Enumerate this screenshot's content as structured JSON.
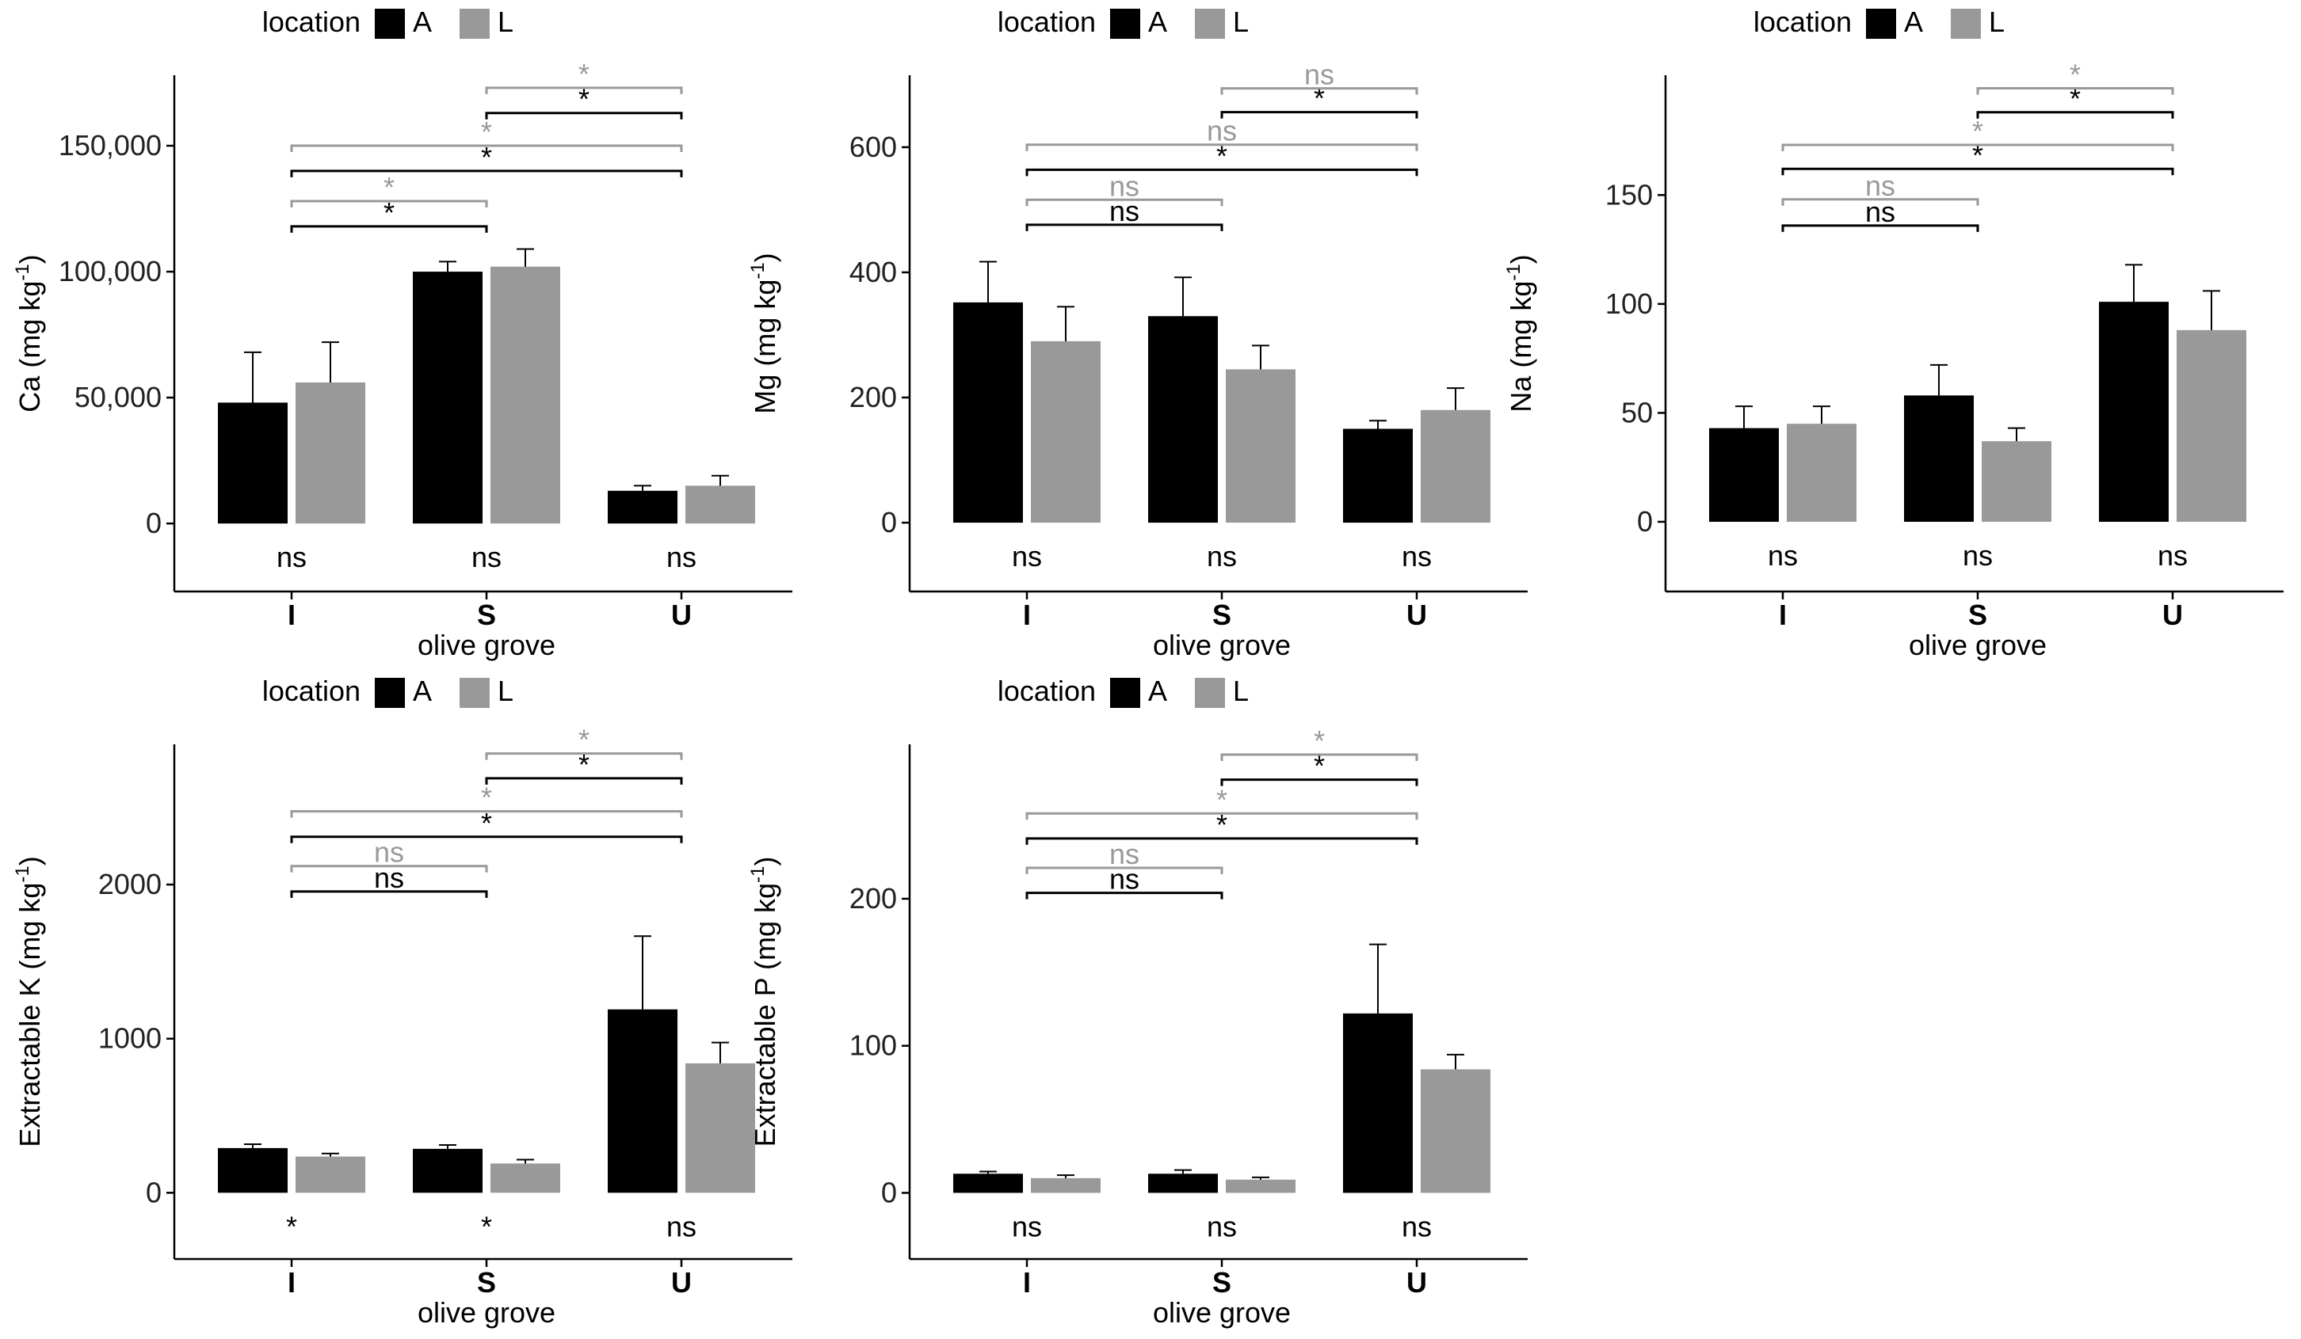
{
  "figure": {
    "colors": {
      "A": "#000000",
      "L": "#999999",
      "axis": "#000000"
    }
  },
  "chart_data": [
    {
      "type": "bar",
      "legend_title": "location",
      "legend_entries": [
        "A",
        "L"
      ],
      "ylabel_main": "Ca (mg kg",
      "ylabel_sup": "-1",
      "ylabel_close": ")",
      "xlabel": "olive grove",
      "categories": [
        "I",
        "S",
        "U"
      ],
      "ylim": [
        -27000,
        178000
      ],
      "yticks": [
        0,
        50000,
        100000,
        150000
      ],
      "ytick_labels": [
        "0",
        "50,000",
        "100,000",
        "150,000"
      ],
      "series": [
        {
          "name": "A",
          "values": [
            48000,
            100000,
            13000
          ],
          "errors": [
            20000,
            4000,
            2000
          ]
        },
        {
          "name": "L",
          "values": [
            56000,
            102000,
            15000
          ],
          "errors": [
            16000,
            7000,
            4000
          ]
        }
      ],
      "within_group_labels": [
        "ns",
        "ns",
        "ns"
      ],
      "comparisons": [
        {
          "from": "I",
          "to": "S",
          "location": "A",
          "label": "*",
          "y": 118000
        },
        {
          "from": "I",
          "to": "S",
          "location": "L",
          "label": "*",
          "y": 128000
        },
        {
          "from": "I",
          "to": "U",
          "location": "A",
          "label": "*",
          "y": 140000
        },
        {
          "from": "I",
          "to": "U",
          "location": "L",
          "label": "*",
          "y": 150000
        },
        {
          "from": "S",
          "to": "U",
          "location": "A",
          "label": "*",
          "y": 163000
        },
        {
          "from": "S",
          "to": "U",
          "location": "L",
          "label": "*",
          "y": 173000
        }
      ]
    },
    {
      "type": "bar",
      "legend_title": "location",
      "legend_entries": [
        "A",
        "L"
      ],
      "ylabel_main": "Mg (mg kg",
      "ylabel_sup": "-1",
      "ylabel_close": ")",
      "xlabel": "olive grove",
      "categories": [
        "I",
        "S",
        "U"
      ],
      "ylim": [
        -110,
        715
      ],
      "yticks": [
        0,
        200,
        400,
        600
      ],
      "ytick_labels": [
        "0",
        "200",
        "400",
        "600"
      ],
      "series": [
        {
          "name": "A",
          "values": [
            352,
            330,
            150
          ],
          "errors": [
            65,
            62,
            13
          ]
        },
        {
          "name": "L",
          "values": [
            290,
            245,
            180
          ],
          "errors": [
            55,
            38,
            35
          ]
        }
      ],
      "within_group_labels": [
        "ns",
        "ns",
        "ns"
      ],
      "comparisons": [
        {
          "from": "I",
          "to": "S",
          "location": "A",
          "label": "ns",
          "y": 476
        },
        {
          "from": "I",
          "to": "S",
          "location": "L",
          "label": "ns",
          "y": 516
        },
        {
          "from": "I",
          "to": "U",
          "location": "A",
          "label": "*",
          "y": 564
        },
        {
          "from": "I",
          "to": "U",
          "location": "L",
          "label": "ns",
          "y": 604
        },
        {
          "from": "S",
          "to": "U",
          "location": "A",
          "label": "*",
          "y": 656
        },
        {
          "from": "S",
          "to": "U",
          "location": "L",
          "label": "ns",
          "y": 694
        }
      ]
    },
    {
      "type": "bar",
      "legend_title": "location",
      "legend_entries": [
        "A",
        "L"
      ],
      "ylabel_main": "Na (mg kg",
      "ylabel_sup": "-1",
      "ylabel_close": ")",
      "xlabel": "olive grove",
      "categories": [
        "I",
        "S",
        "U"
      ],
      "ylim": [
        -32,
        205
      ],
      "yticks": [
        0,
        50,
        100,
        150
      ],
      "ytick_labels": [
        "0",
        "50",
        "100",
        "150"
      ],
      "series": [
        {
          "name": "A",
          "values": [
            43,
            58,
            101
          ],
          "errors": [
            10,
            14,
            17
          ]
        },
        {
          "name": "L",
          "values": [
            45,
            37,
            88
          ],
          "errors": [
            8,
            6,
            18
          ]
        }
      ],
      "within_group_labels": [
        "ns",
        "ns",
        "ns"
      ],
      "comparisons": [
        {
          "from": "I",
          "to": "S",
          "location": "A",
          "label": "ns",
          "y": 136
        },
        {
          "from": "I",
          "to": "S",
          "location": "L",
          "label": "ns",
          "y": 148
        },
        {
          "from": "I",
          "to": "U",
          "location": "A",
          "label": "*",
          "y": 162
        },
        {
          "from": "I",
          "to": "U",
          "location": "L",
          "label": "*",
          "y": 173
        },
        {
          "from": "S",
          "to": "U",
          "location": "A",
          "label": "*",
          "y": 188
        },
        {
          "from": "S",
          "to": "U",
          "location": "L",
          "label": "*",
          "y": 199
        }
      ]
    },
    {
      "type": "bar",
      "legend_title": "location",
      "legend_entries": [
        "A",
        "L"
      ],
      "ylabel_main": "Extractable K (mg kg",
      "ylabel_sup": "-1",
      "ylabel_close": ")",
      "xlabel": "olive grove",
      "categories": [
        "I",
        "S",
        "U"
      ],
      "ylim": [
        -430,
        2910
      ],
      "yticks": [
        0,
        1000,
        2000
      ],
      "ytick_labels": [
        "0",
        "1000",
        "2000"
      ],
      "series": [
        {
          "name": "A",
          "values": [
            290,
            285,
            1190
          ],
          "errors": [
            25,
            25,
            475
          ]
        },
        {
          "name": "L",
          "values": [
            235,
            190,
            840
          ],
          "errors": [
            20,
            25,
            135
          ]
        }
      ],
      "within_group_labels": [
        "*",
        "*",
        "ns"
      ],
      "comparisons": [
        {
          "from": "I",
          "to": "S",
          "location": "A",
          "label": "ns",
          "y": 1955
        },
        {
          "from": "I",
          "to": "S",
          "location": "L",
          "label": "ns",
          "y": 2120
        },
        {
          "from": "I",
          "to": "U",
          "location": "A",
          "label": "*",
          "y": 2310
        },
        {
          "from": "I",
          "to": "U",
          "location": "L",
          "label": "*",
          "y": 2475
        },
        {
          "from": "S",
          "to": "U",
          "location": "A",
          "label": "*",
          "y": 2690
        },
        {
          "from": "S",
          "to": "U",
          "location": "L",
          "label": "*",
          "y": 2850
        }
      ]
    },
    {
      "type": "bar",
      "legend_title": "location",
      "legend_entries": [
        "A",
        "L"
      ],
      "ylabel_main": "Extractable P (mg kg",
      "ylabel_sup": "-1",
      "ylabel_close": ")",
      "xlabel": "olive grove",
      "categories": [
        "I",
        "S",
        "U"
      ],
      "ylim": [
        -45,
        305
      ],
      "yticks": [
        0,
        100,
        200
      ],
      "ytick_labels": [
        "0",
        "100",
        "200"
      ],
      "series": [
        {
          "name": "A",
          "values": [
            13,
            13,
            122
          ],
          "errors": [
            1.5,
            2.5,
            47
          ]
        },
        {
          "name": "L",
          "values": [
            10,
            9,
            84
          ],
          "errors": [
            2,
            1.5,
            10
          ]
        }
      ],
      "within_group_labels": [
        "ns",
        "ns",
        "ns"
      ],
      "comparisons": [
        {
          "from": "I",
          "to": "S",
          "location": "A",
          "label": "ns",
          "y": 204
        },
        {
          "from": "I",
          "to": "S",
          "location": "L",
          "label": "ns",
          "y": 221
        },
        {
          "from": "I",
          "to": "U",
          "location": "A",
          "label": "*",
          "y": 241
        },
        {
          "from": "I",
          "to": "U",
          "location": "L",
          "label": "*",
          "y": 258
        },
        {
          "from": "S",
          "to": "U",
          "location": "A",
          "label": "*",
          "y": 281
        },
        {
          "from": "S",
          "to": "U",
          "location": "L",
          "label": "*",
          "y": 298
        }
      ]
    }
  ]
}
